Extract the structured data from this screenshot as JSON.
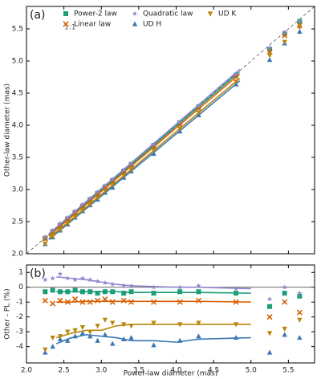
{
  "chart_data": [
    {
      "type": "scatter",
      "panel_label": "(a)",
      "annotation": "1:1",
      "ylabel": "Other-law diameter (mas)",
      "xlim": [
        2.0,
        5.85
      ],
      "ylim": [
        2.0,
        5.85
      ],
      "xticks": [
        2.0,
        2.5,
        3.0,
        3.5,
        4.0,
        4.5,
        5.0,
        5.5
      ],
      "yticks": [
        {
          "value": 2,
          "label": "2.0"
        },
        2.5,
        {
          "value": 3,
          "label": "3.0"
        },
        3.5,
        {
          "value": 4,
          "label": "4.0"
        },
        4.5,
        {
          "value": 5,
          "label": "5.0"
        },
        5.5
      ],
      "x": [
        2.25,
        2.35,
        2.45,
        2.55,
        2.65,
        2.75,
        2.85,
        2.95,
        3.05,
        3.15,
        3.3,
        3.4,
        3.7,
        4.05,
        4.3,
        4.8,
        5.25,
        5.45,
        5.65
      ],
      "fit_x": [
        2.3,
        4.85
      ],
      "series": [
        {
          "name": "Power-2 law",
          "color": "#1b9e77",
          "marker": "square",
          "values": [
            2.243,
            2.345,
            2.443,
            2.542,
            2.645,
            2.742,
            2.841,
            2.938,
            3.041,
            3.141,
            3.287,
            3.39,
            3.685,
            4.038,
            4.287,
            4.781,
            5.182,
            5.428,
            5.616
          ],
          "fit": [
            2.293,
            4.835
          ]
        },
        {
          "name": "Linear law",
          "color": "#d95f02",
          "marker": "x",
          "values": [
            2.23,
            2.324,
            2.428,
            2.525,
            2.629,
            2.723,
            2.822,
            2.923,
            3.026,
            3.119,
            3.27,
            3.366,
            3.663,
            4.01,
            4.261,
            4.752,
            5.145,
            5.396,
            5.554
          ],
          "fit": [
            2.277,
            4.8
          ]
        },
        {
          "name": "Quadratic law",
          "color": "#8f86cf",
          "marker": "star",
          "values": [
            2.261,
            2.364,
            2.472,
            2.565,
            2.663,
            2.767,
            2.864,
            2.962,
            3.059,
            3.156,
            3.303,
            3.403,
            3.7,
            4.05,
            4.304,
            4.795,
            5.208,
            5.45,
            5.627
          ],
          "fit": [
            2.311,
            4.87
          ]
        },
        {
          "name": "UD H",
          "color": "#3a78b5",
          "marker": "triangle-up",
          "values": [
            2.151,
            2.256,
            2.364,
            2.458,
            2.563,
            2.665,
            2.756,
            2.844,
            2.952,
            3.03,
            3.185,
            3.284,
            3.556,
            3.904,
            4.158,
            4.637,
            5.019,
            5.276,
            5.458
          ],
          "fit": [
            2.22,
            4.69
          ]
        },
        {
          "name": "UD K",
          "color": "#b8860b",
          "marker": "triangle-down",
          "values": [
            2.156,
            2.27,
            2.369,
            2.474,
            2.573,
            2.676,
            2.765,
            2.873,
            2.983,
            3.074,
            3.218,
            3.312,
            3.611,
            3.949,
            4.197,
            4.68,
            5.087,
            5.297,
            5.526
          ],
          "fit": [
            2.24,
            4.73
          ]
        }
      ]
    },
    {
      "type": "scatter",
      "panel_label": "(b)",
      "ylabel": "Other - PL (%)",
      "xlabel": "Power-law diameter (mas)",
      "xlim": [
        2.0,
        5.85
      ],
      "ylim": [
        -5.1,
        1.5
      ],
      "xticks": [
        {
          "value": 2,
          "label": "2.0"
        },
        2.5,
        {
          "value": 3,
          "label": "3.0"
        },
        3.5,
        {
          "value": 4,
          "label": "4.0"
        },
        4.5,
        {
          "value": 5,
          "label": "5.0"
        },
        5.5
      ],
      "yticks": [
        1,
        0,
        -1,
        -2,
        -3,
        -4
      ],
      "x": [
        2.25,
        2.35,
        2.45,
        2.55,
        2.65,
        2.75,
        2.85,
        2.95,
        3.05,
        3.15,
        3.3,
        3.4,
        3.7,
        4.05,
        4.3,
        4.8,
        5.25,
        5.45,
        5.65
      ],
      "trend_x": [
        2.4,
        2.6,
        2.8,
        3.0,
        3.2,
        3.4,
        3.7,
        4.0,
        4.3,
        5.0
      ],
      "series": [
        {
          "name": "Power-2 law",
          "color": "#1b9e77",
          "marker": "square",
          "values": [
            -0.3,
            -0.2,
            -0.3,
            -0.3,
            -0.2,
            -0.3,
            -0.3,
            -0.4,
            -0.3,
            -0.3,
            -0.4,
            -0.3,
            -0.4,
            -0.3,
            -0.3,
            -0.4,
            -1.3,
            -0.4,
            -0.6
          ],
          "trend": [
            -0.3,
            -0.3,
            -0.3,
            -0.3,
            -0.3,
            -0.35,
            -0.35,
            -0.35,
            -0.35,
            -0.4
          ]
        },
        {
          "name": "Linear law",
          "color": "#d95f02",
          "marker": "x",
          "values": [
            -0.9,
            -1.1,
            -0.9,
            -1.0,
            -0.8,
            -1.0,
            -1.0,
            -0.9,
            -0.8,
            -1.0,
            -0.9,
            -1.0,
            -1.0,
            -1.0,
            -0.9,
            -1.0,
            -2.0,
            -1.0,
            -1.7
          ],
          "trend": [
            -1.0,
            -1.0,
            -0.95,
            -0.95,
            -0.95,
            -0.95,
            -0.95,
            -0.95,
            -0.95,
            -1.0
          ]
        },
        {
          "name": "Quadratic law",
          "color": "#8f86cf",
          "marker": "star",
          "values": [
            0.5,
            0.6,
            0.9,
            0.6,
            0.5,
            0.6,
            0.5,
            0.4,
            0.3,
            0.2,
            0.1,
            0.1,
            0.0,
            0.0,
            0.1,
            -0.1,
            -0.8,
            0.0,
            -0.4
          ],
          "trend": [
            0.7,
            0.6,
            0.5,
            0.35,
            0.2,
            0.1,
            0.05,
            0.0,
            0.0,
            -0.1
          ]
        },
        {
          "name": "UD H",
          "color": "#3a78b5",
          "marker": "triangle-up",
          "values": [
            -4.4,
            -4.0,
            -3.5,
            -3.6,
            -3.3,
            -3.1,
            -3.3,
            -3.6,
            -3.2,
            -3.8,
            -3.5,
            -3.4,
            -3.9,
            -3.6,
            -3.3,
            -3.4,
            -4.4,
            -3.2,
            -3.4
          ],
          "trend": [
            -3.8,
            -3.4,
            -3.2,
            -3.3,
            -3.4,
            -3.6,
            -3.6,
            -3.7,
            -3.5,
            -3.4
          ]
        },
        {
          "name": "UD K",
          "color": "#b8860b",
          "marker": "triangle-down",
          "values": [
            -4.2,
            -3.4,
            -3.3,
            -3.0,
            -2.9,
            -2.7,
            -3.0,
            -2.6,
            -2.2,
            -2.4,
            -2.5,
            -2.6,
            -2.4,
            -2.5,
            -2.4,
            -2.5,
            -3.1,
            -2.8,
            -2.2
          ],
          "trend": [
            -3.4,
            -3.1,
            -2.9,
            -2.9,
            -2.6,
            -2.5,
            -2.5,
            -2.5,
            -2.5,
            -2.5
          ]
        }
      ]
    }
  ]
}
